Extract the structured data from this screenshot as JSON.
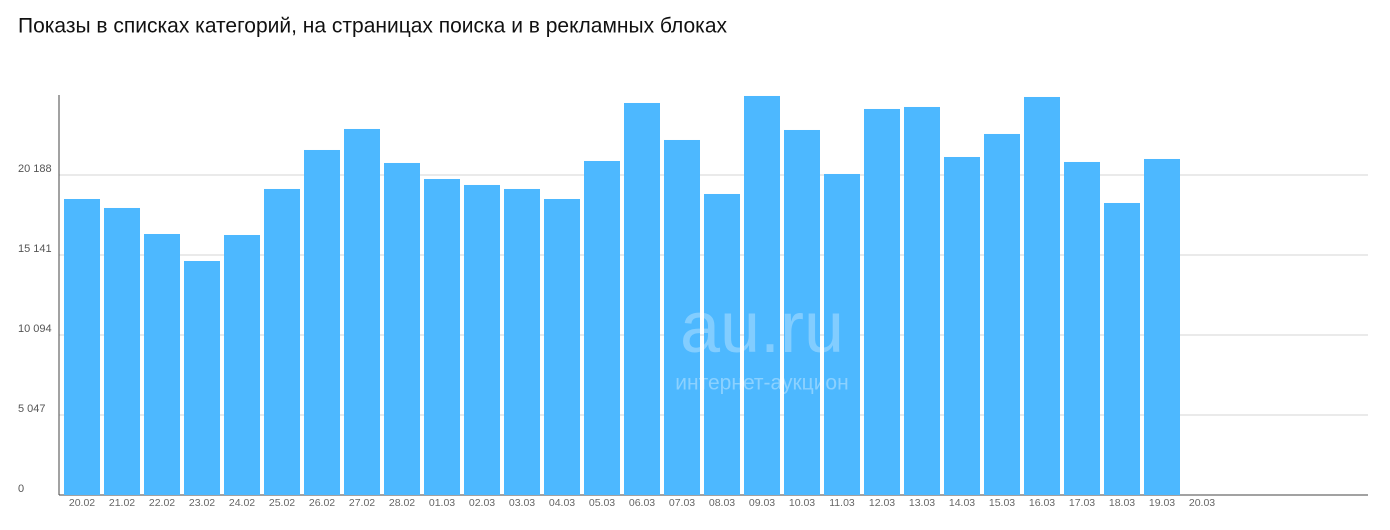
{
  "chart_data": {
    "type": "bar",
    "title": "Показы в списках категорий, на страницах поиска и в рекламных блоках",
    "watermark": [
      "au.ru",
      "интернет-аукцион"
    ],
    "categories": [
      "20.02",
      "21.02",
      "22.02",
      "23.02",
      "24.02",
      "25.02",
      "26.02",
      "27.02",
      "28.02",
      "01.03",
      "02.03",
      "03.03",
      "04.03",
      "05.03",
      "06.03",
      "07.03",
      "08.03",
      "09.03",
      "10.03",
      "11.03",
      "12.03",
      "13.03",
      "14.03",
      "15.03",
      "16.03",
      "17.03",
      "18.03",
      "19.03",
      "20.03"
    ],
    "values": [
      18674,
      18107,
      16466,
      14763,
      16403,
      19306,
      21766,
      23091,
      20946,
      19936,
      19558,
      19306,
      18674,
      21072,
      24731,
      22397,
      18990,
      25173,
      23028,
      20252,
      24353,
      24479,
      21324,
      22776,
      25110,
      21009,
      18422,
      21198,
      0
    ],
    "color": "#4db8ff",
    "ylim": [
      0,
      25235
    ],
    "yticks": [
      0,
      {
        "value": 5047,
        "label": "5 047"
      },
      {
        "value": 10094,
        "label": "10 094"
      },
      {
        "value": 15141,
        "label": "15 141"
      },
      {
        "value": 20188,
        "label": "20 188"
      }
    ],
    "grid": true
  }
}
